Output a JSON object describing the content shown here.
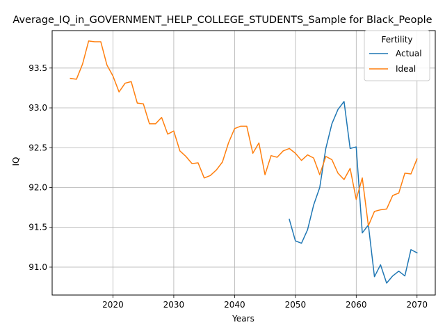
{
  "chart_data": {
    "type": "line",
    "title": "Average_IQ_in_GOVERNMENT_HELP_COLLEGE_STUDENTS_Sample for Black_People",
    "xlabel": "Years",
    "ylabel": "IQ",
    "xlim": [
      2010,
      2073
    ],
    "ylim": [
      90.65,
      93.97
    ],
    "xticks": [
      2020,
      2030,
      2040,
      2050,
      2060,
      2070
    ],
    "yticks": [
      91.0,
      91.5,
      92.0,
      92.5,
      93.0,
      93.5
    ],
    "ytick_labels": [
      "91.0",
      "91.5",
      "92.0",
      "92.5",
      "93.0",
      "93.5"
    ],
    "grid": true,
    "legend": {
      "title": "Fertility",
      "placement": "top-right"
    },
    "series": [
      {
        "name": "Actual",
        "color": "#1f77b4",
        "x": [
          2049,
          2050,
          2051,
          2052,
          2053,
          2054,
          2055,
          2056,
          2057,
          2058,
          2059,
          2060,
          2061,
          2062,
          2063,
          2064,
          2065,
          2066,
          2067,
          2068,
          2069,
          2070
        ],
        "y": [
          91.6,
          91.33,
          91.3,
          91.47,
          91.78,
          92.0,
          92.49,
          92.8,
          92.98,
          93.08,
          92.49,
          92.51,
          91.43,
          91.53,
          90.88,
          91.03,
          90.8,
          90.89,
          90.95,
          90.89,
          91.22,
          91.18
        ]
      },
      {
        "name": "Ideal",
        "color": "#ff7f0e",
        "x": [
          2013,
          2014,
          2015,
          2016,
          2017,
          2018,
          2019,
          2020,
          2021,
          2022,
          2023,
          2024,
          2025,
          2026,
          2027,
          2028,
          2029,
          2030,
          2031,
          2032,
          2033,
          2034,
          2035,
          2036,
          2037,
          2038,
          2039,
          2040,
          2041,
          2042,
          2043,
          2044,
          2045,
          2046,
          2047,
          2048,
          2049,
          2050,
          2051,
          2052,
          2053,
          2054,
          2055,
          2056,
          2057,
          2058,
          2059,
          2060,
          2061,
          2062,
          2063,
          2064,
          2065,
          2066,
          2067,
          2068,
          2069,
          2070
        ],
        "y": [
          93.37,
          93.36,
          93.55,
          93.84,
          93.83,
          93.83,
          93.54,
          93.4,
          93.2,
          93.31,
          93.33,
          93.06,
          93.05,
          92.8,
          92.8,
          92.88,
          92.67,
          92.71,
          92.46,
          92.39,
          92.3,
          92.31,
          92.12,
          92.15,
          92.22,
          92.32,
          92.56,
          92.74,
          92.77,
          92.77,
          92.43,
          92.56,
          92.16,
          92.4,
          92.38,
          92.46,
          92.49,
          92.43,
          92.34,
          92.41,
          92.37,
          92.16,
          92.39,
          92.35,
          92.18,
          92.1,
          92.24,
          91.85,
          92.12,
          91.52,
          91.7,
          91.72,
          91.73,
          91.9,
          91.93,
          92.18,
          92.17,
          92.36
        ]
      }
    ]
  }
}
